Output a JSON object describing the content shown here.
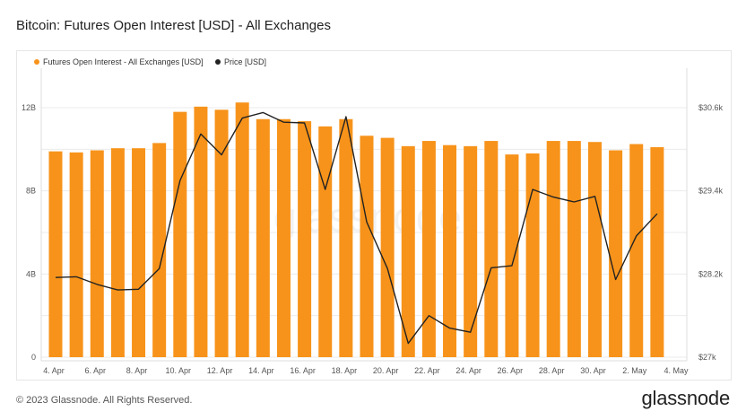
{
  "header": {
    "title": "Bitcoin: Futures Open Interest [USD] - All Exchanges"
  },
  "footer": {
    "copyright": "© 2023 Glassnode. All Rights Reserved.",
    "brand": "glassnode"
  },
  "watermark": "glassnode",
  "colors": {
    "bar": "#f7931a",
    "line": "#222222",
    "grid": "#ebebeb",
    "text": "#555555"
  },
  "chart_data": {
    "type": "bar",
    "title": "Bitcoin: Futures Open Interest [USD] - All Exchanges",
    "x_ticks": [
      "4. Apr",
      "6. Apr",
      "8. Apr",
      "10. Apr",
      "12. Apr",
      "14. Apr",
      "16. Apr",
      "18. Apr",
      "20. Apr",
      "22. Apr",
      "24. Apr",
      "26. Apr",
      "28. Apr",
      "30. Apr",
      "2. May",
      "4. May"
    ],
    "x_range": [
      "2023-04-04",
      "2023-05-04"
    ],
    "dates": [
      "2023-04-04",
      "2023-04-05",
      "2023-04-06",
      "2023-04-07",
      "2023-04-08",
      "2023-04-09",
      "2023-04-10",
      "2023-04-11",
      "2023-04-12",
      "2023-04-13",
      "2023-04-14",
      "2023-04-15",
      "2023-04-16",
      "2023-04-17",
      "2023-04-18",
      "2023-04-19",
      "2023-04-20",
      "2023-04-21",
      "2023-04-22",
      "2023-04-23",
      "2023-04-24",
      "2023-04-25",
      "2023-04-26",
      "2023-04-27",
      "2023-04-28",
      "2023-04-29",
      "2023-04-30",
      "2023-05-01",
      "2023-05-02",
      "2023-05-03"
    ],
    "legend_position": "top-left",
    "series": [
      {
        "name": "Futures Open Interest - All Exchanges [USD]",
        "axis": "left",
        "type": "bar",
        "values": [
          9.9,
          9.85,
          9.95,
          10.05,
          10.05,
          10.3,
          11.8,
          12.05,
          11.9,
          12.25,
          11.45,
          11.45,
          11.35,
          11.1,
          11.45,
          10.65,
          10.55,
          10.15,
          10.4,
          10.2,
          10.15,
          10.4,
          9.75,
          9.8,
          10.4,
          10.4,
          10.35,
          9.95,
          10.25,
          10.1
        ]
      },
      {
        "name": "Price [USD]",
        "axis": "right",
        "type": "line",
        "values": [
          28.15,
          28.16,
          28.05,
          27.97,
          27.98,
          28.28,
          29.55,
          30.22,
          29.92,
          30.45,
          30.53,
          30.39,
          30.38,
          29.42,
          30.47,
          28.95,
          28.28,
          27.2,
          27.6,
          27.42,
          27.36,
          28.29,
          28.32,
          29.42,
          29.31,
          29.24,
          29.32,
          28.12,
          28.75,
          29.07
        ]
      }
    ],
    "y_left": {
      "ticks": [
        "0",
        "4B",
        "8B",
        "12B"
      ],
      "range": [
        0,
        12
      ],
      "unit": "B"
    },
    "y_right": {
      "ticks": [
        "$27k",
        "$28.2k",
        "$29.4k",
        "$30.6k"
      ],
      "range": [
        27.0,
        30.6
      ],
      "unit": "k"
    },
    "grid": true
  }
}
